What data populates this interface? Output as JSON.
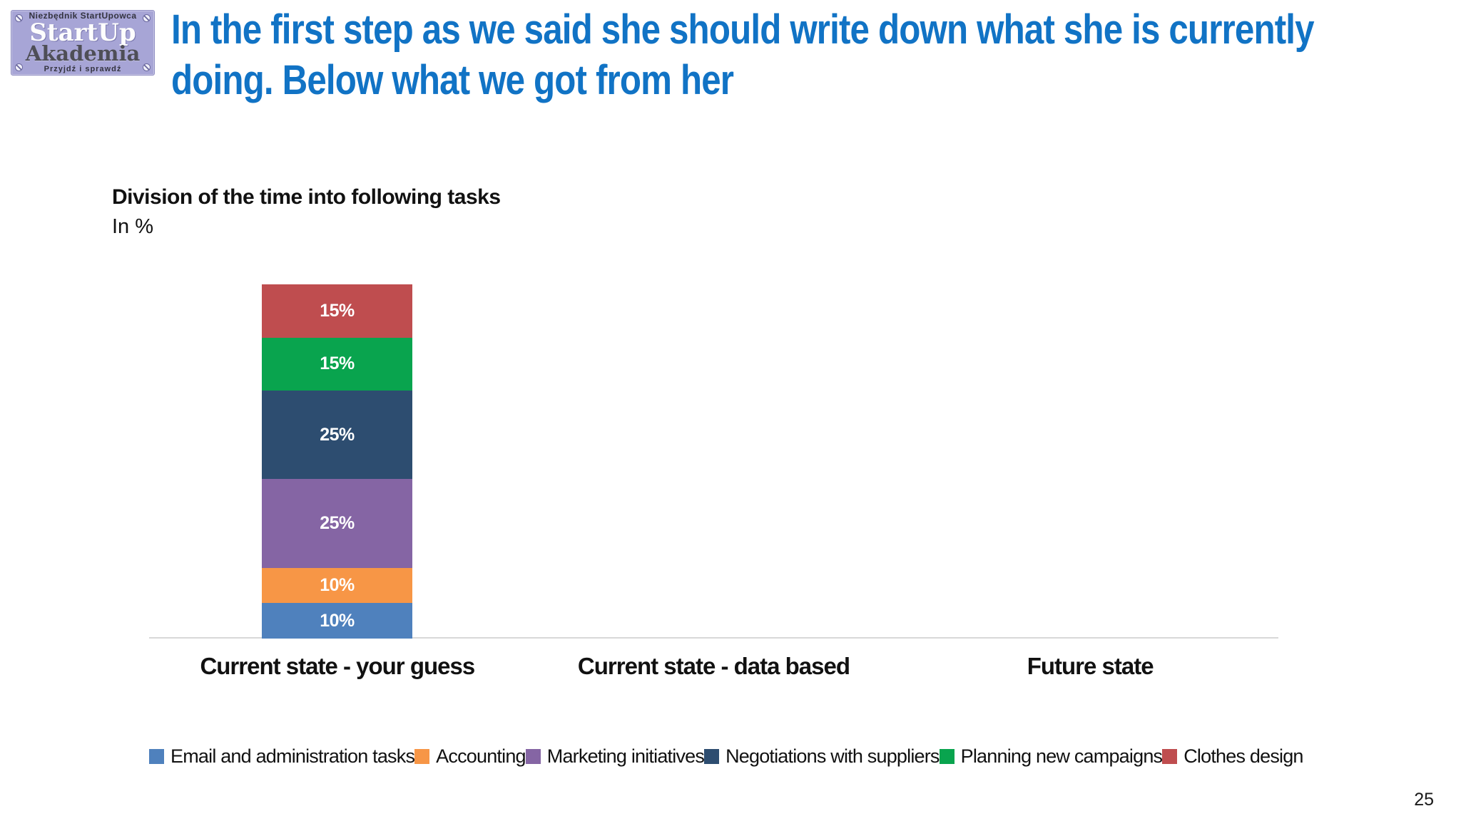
{
  "logo": {
    "top_text": "Niezbędnik StartUpowca",
    "line1": "StartUp",
    "line2": "Akademia",
    "bottom_text": "Przyjdź i sprawdź",
    "background_color": "#a7a5d6"
  },
  "header": {
    "title_line1": "In the first step as we said she should write down what she is currently",
    "title_line2": "doing. Below what we got from her",
    "title_color": "#1173c5"
  },
  "chart": {
    "title": "Division of the time into following tasks",
    "subtitle": "In %"
  },
  "chart_data": {
    "type": "bar",
    "stacked": true,
    "title": "Division of the time into following tasks",
    "subtitle": "In %",
    "unit": "%",
    "categories": [
      "Current state - your guess",
      "Current state - data based",
      "Future state"
    ],
    "series": [
      {
        "name": "Email and administration tasks",
        "color": "#4f81bd",
        "values": [
          10,
          null,
          null
        ]
      },
      {
        "name": "Accounting",
        "color": "#f79646",
        "values": [
          10,
          null,
          null
        ]
      },
      {
        "name": "Marketing initiatives",
        "color": "#8565a4",
        "values": [
          25,
          null,
          null
        ]
      },
      {
        "name": "Negotiations with suppliers",
        "color": "#2d4d70",
        "values": [
          25,
          null,
          null
        ]
      },
      {
        "name": "Planning new campaigns",
        "color": "#09a44e",
        "values": [
          15,
          null,
          null
        ]
      },
      {
        "name": "Clothes design",
        "color": "#bf4d4f",
        "values": [
          15,
          null,
          null
        ]
      }
    ],
    "ylim": [
      0,
      100
    ],
    "grid": false,
    "legend_position": "bottom",
    "data_label_format": "{v}%",
    "axis_color": "#d8d8d8"
  },
  "footer": {
    "page_number": "25"
  }
}
